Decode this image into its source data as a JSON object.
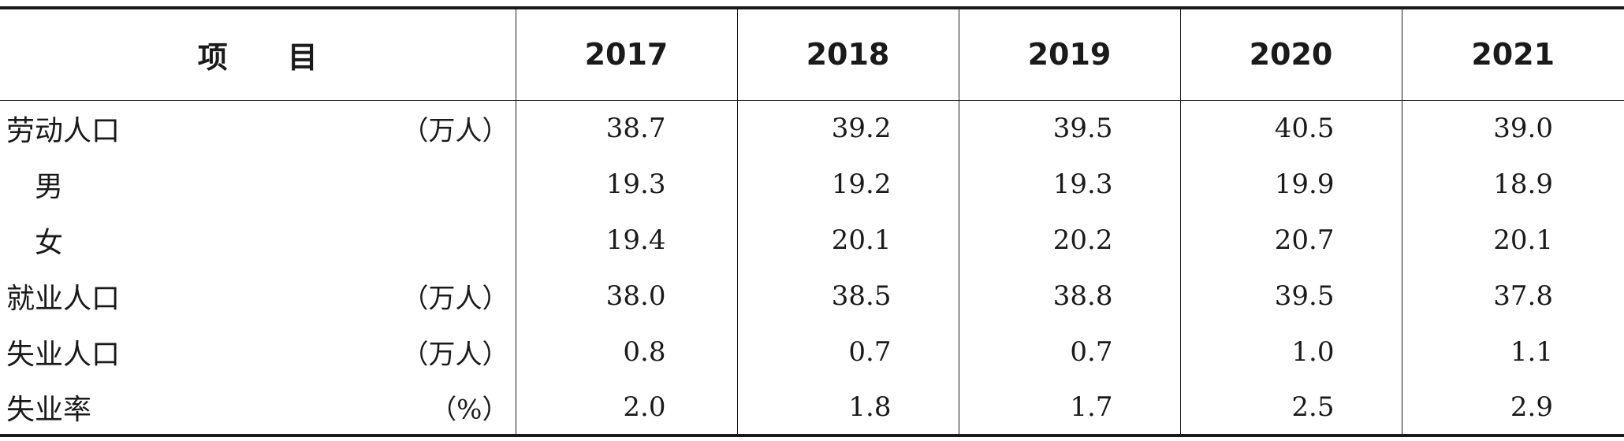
{
  "table": {
    "header": {
      "item_label": "项　　目",
      "years": [
        "2017",
        "2018",
        "2019",
        "2020",
        "2021"
      ]
    },
    "rows": [
      {
        "label": "劳动人口",
        "unit": "（万人）",
        "indent": false,
        "values": [
          "38.7",
          "39.2",
          "39.5",
          "40.5",
          "39.0"
        ]
      },
      {
        "label": "男",
        "unit": "",
        "indent": true,
        "values": [
          "19.3",
          "19.2",
          "19.3",
          "19.9",
          "18.9"
        ]
      },
      {
        "label": "女",
        "unit": "",
        "indent": true,
        "values": [
          "19.4",
          "20.1",
          "20.2",
          "20.7",
          "20.1"
        ]
      },
      {
        "label": "就业人口",
        "unit": "（万人）",
        "indent": false,
        "values": [
          "38.0",
          "38.5",
          "38.8",
          "39.5",
          "37.8"
        ]
      },
      {
        "label": "失业人口",
        "unit": "（万人）",
        "indent": false,
        "values": [
          "0.8",
          "0.7",
          "0.7",
          "1.0",
          "1.1"
        ]
      },
      {
        "label": "失业率",
        "unit": "（%）",
        "indent": false,
        "values": [
          "2.0",
          "1.8",
          "1.7",
          "2.5",
          "2.9"
        ]
      }
    ]
  }
}
